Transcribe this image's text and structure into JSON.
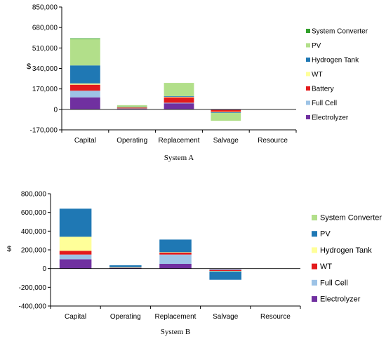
{
  "chart_data": [
    {
      "type": "bar",
      "stacked": true,
      "caption": "System A",
      "ylabel": "$",
      "ylim": [
        -170000,
        850000
      ],
      "yticks": [
        "850,000",
        "680,000",
        "510,000",
        "340,000",
        "170,000",
        "0",
        "-170,000"
      ],
      "categories": [
        "Capital",
        "Operating",
        "Replacement",
        "Salvage",
        "Resource"
      ],
      "legend_position": "right",
      "series": [
        {
          "name": "Electrolyzer",
          "color": "#7030A0",
          "values": [
            100000,
            5000,
            50000,
            -3000,
            0
          ]
        },
        {
          "name": "Full Cell",
          "color": "#9DC3E6",
          "values": [
            55000,
            3000,
            5000,
            -2000,
            0
          ]
        },
        {
          "name": "Battery",
          "color": "#E31A1C",
          "values": [
            50000,
            8000,
            45000,
            -15000,
            0
          ]
        },
        {
          "name": "WT",
          "color": "#FFFF99",
          "values": [
            10000,
            2000,
            5000,
            -5000,
            0
          ]
        },
        {
          "name": "Hydrogen Tank",
          "color": "#1F78B4",
          "values": [
            150000,
            2000,
            5000,
            -5000,
            0
          ]
        },
        {
          "name": "PV",
          "color": "#B2DF8A",
          "values": [
            220000,
            15000,
            110000,
            -65000,
            0
          ]
        },
        {
          "name": "System Converter",
          "color": "#33A02C",
          "values": [
            5000,
            0,
            0,
            0,
            0
          ]
        }
      ]
    },
    {
      "type": "bar",
      "stacked": true,
      "caption": "System B",
      "ylabel": "$",
      "ylim": [
        -400000,
        800000
      ],
      "yticks": [
        "800,000",
        "600,000",
        "400,000",
        "200,000",
        "0",
        "-200,000",
        "-400,000"
      ],
      "categories": [
        "Capital",
        "Operating",
        "Replacement",
        "Salvage",
        "Resource"
      ],
      "legend_position": "right",
      "series": [
        {
          "name": "Electrolyzer",
          "color": "#7030A0",
          "values": [
            100000,
            5000,
            50000,
            -5000,
            0
          ]
        },
        {
          "name": "Full Cell",
          "color": "#9DC3E6",
          "values": [
            50000,
            5000,
            100000,
            -10000,
            0
          ]
        },
        {
          "name": "WT",
          "color": "#E31A1C",
          "values": [
            40000,
            3000,
            20000,
            -10000,
            0
          ]
        },
        {
          "name": "Hydrogen Tank",
          "color": "#FFFF99",
          "values": [
            150000,
            2000,
            5000,
            -5000,
            0
          ]
        },
        {
          "name": "PV",
          "color": "#1F78B4",
          "values": [
            300000,
            20000,
            135000,
            -90000,
            0
          ]
        },
        {
          "name": "System Converter",
          "color": "#B2DF8A",
          "values": [
            0,
            0,
            0,
            0,
            0
          ]
        }
      ]
    }
  ]
}
